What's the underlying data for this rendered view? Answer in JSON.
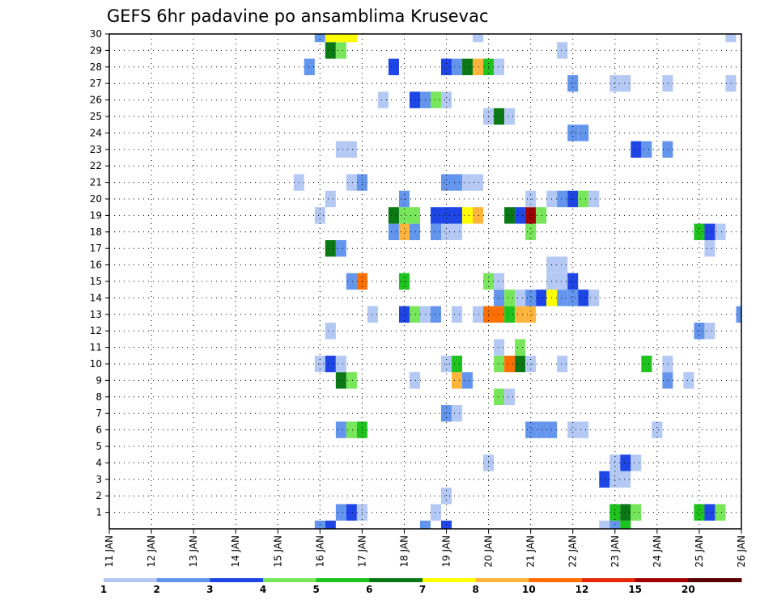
{
  "chart_data": {
    "type": "heatmap",
    "title": "GEFS 6hr padavine po ansamblima Krusevac",
    "x_tick_labels": [
      "11 JAN",
      "12 JAN",
      "13 JAN",
      "14 JAN",
      "15 JAN",
      "16 JAN",
      "17 JAN",
      "18 JAN",
      "19 JAN",
      "20 JAN",
      "21 JAN",
      "22 JAN",
      "23 JAN",
      "24 JAN",
      "25 JAN",
      "26 JAN"
    ],
    "y_tick_labels": [
      "1",
      "2",
      "3",
      "4",
      "5",
      "6",
      "7",
      "8",
      "9",
      "10",
      "11",
      "12",
      "13",
      "14",
      "15",
      "16",
      "17",
      "18",
      "19",
      "20",
      "21",
      "22",
      "23",
      "24",
      "25",
      "26",
      "27",
      "28",
      "29",
      "30"
    ],
    "xlim_days": [
      11,
      26
    ],
    "ylim_members": [
      0,
      30
    ],
    "x_units": "days (JAN), 6-hour bins",
    "y_units": "ensemble member",
    "grid": true,
    "legend": {
      "placement": "bottom",
      "labels": [
        "1",
        "2",
        "3",
        "4",
        "5",
        "6",
        "7",
        "8",
        "10",
        "12",
        "15",
        "20"
      ],
      "colors": [
        "#b4c8f4",
        "#6495ed",
        "#1e46e6",
        "#78e65a",
        "#1ec31e",
        "#0a7814",
        "#ffff00",
        "#ffb43c",
        "#ff6e00",
        "#e6280a",
        "#a00000",
        "#5a0000"
      ]
    },
    "series": [
      {
        "member": 0,
        "cells": [
          {
            "day": 16.0,
            "v": 2
          },
          {
            "day": 16.25,
            "v": 3
          },
          {
            "day": 18.5,
            "v": 2
          },
          {
            "day": 19.0,
            "v": 3
          },
          {
            "day": 22.75,
            "v": 1
          },
          {
            "day": 23.0,
            "v": 2
          },
          {
            "day": 23.25,
            "v": 5
          }
        ]
      },
      {
        "member": 1,
        "cells": [
          {
            "day": 16.5,
            "v": 2
          },
          {
            "day": 16.75,
            "v": 3
          },
          {
            "day": 17.0,
            "v": 1
          },
          {
            "day": 18.75,
            "v": 1
          },
          {
            "day": 23.0,
            "v": 5
          },
          {
            "day": 23.25,
            "v": 6
          },
          {
            "day": 23.5,
            "v": 4
          },
          {
            "day": 25.0,
            "v": 5
          },
          {
            "day": 25.25,
            "v": 3
          },
          {
            "day": 25.5,
            "v": 4
          }
        ]
      },
      {
        "member": 2,
        "cells": [
          {
            "day": 19.0,
            "v": 1
          }
        ]
      },
      {
        "member": 3,
        "cells": [
          {
            "day": 22.75,
            "v": 3
          },
          {
            "day": 23.0,
            "v": 1
          },
          {
            "day": 23.25,
            "v": 1
          }
        ]
      },
      {
        "member": 4,
        "cells": [
          {
            "day": 20.0,
            "v": 1
          },
          {
            "day": 23.0,
            "v": 1
          },
          {
            "day": 23.25,
            "v": 3
          },
          {
            "day": 23.5,
            "v": 1
          }
        ]
      },
      {
        "member": 6,
        "cells": [
          {
            "day": 16.5,
            "v": 2
          },
          {
            "day": 16.75,
            "v": 4
          },
          {
            "day": 17.0,
            "v": 5
          },
          {
            "day": 21.0,
            "v": 2
          },
          {
            "day": 21.25,
            "v": 2
          },
          {
            "day": 21.5,
            "v": 2
          },
          {
            "day": 22.0,
            "v": 1
          },
          {
            "day": 22.25,
            "v": 1
          },
          {
            "day": 24.0,
            "v": 1
          }
        ]
      },
      {
        "member": 7,
        "cells": [
          {
            "day": 19.0,
            "v": 2
          },
          {
            "day": 19.25,
            "v": 1
          }
        ]
      },
      {
        "member": 8,
        "cells": [
          {
            "day": 20.25,
            "v": 4
          },
          {
            "day": 20.5,
            "v": 1
          }
        ]
      },
      {
        "member": 9,
        "cells": [
          {
            "day": 16.5,
            "v": 6
          },
          {
            "day": 16.75,
            "v": 4
          },
          {
            "day": 18.25,
            "v": 1
          },
          {
            "day": 19.25,
            "v": 8
          },
          {
            "day": 19.5,
            "v": 2
          },
          {
            "day": 24.25,
            "v": 2
          },
          {
            "day": 24.75,
            "v": 1
          }
        ]
      },
      {
        "member": 10,
        "cells": [
          {
            "day": 16.0,
            "v": 1
          },
          {
            "day": 16.25,
            "v": 3
          },
          {
            "day": 16.5,
            "v": 1
          },
          {
            "day": 19.0,
            "v": 1
          },
          {
            "day": 19.25,
            "v": 5
          },
          {
            "day": 20.25,
            "v": 4
          },
          {
            "day": 20.5,
            "v": 10
          },
          {
            "day": 20.75,
            "v": 6
          },
          {
            "day": 21.0,
            "v": 1
          },
          {
            "day": 21.75,
            "v": 1
          },
          {
            "day": 23.75,
            "v": 5
          },
          {
            "day": 24.25,
            "v": 1
          }
        ]
      },
      {
        "member": 11,
        "cells": [
          {
            "day": 20.25,
            "v": 1
          },
          {
            "day": 20.75,
            "v": 4
          }
        ]
      },
      {
        "member": 12,
        "cells": [
          {
            "day": 16.25,
            "v": 1
          },
          {
            "day": 25.0,
            "v": 2
          },
          {
            "day": 25.25,
            "v": 1
          }
        ]
      },
      {
        "member": 13,
        "cells": [
          {
            "day": 17.25,
            "v": 1
          },
          {
            "day": 18.0,
            "v": 3
          },
          {
            "day": 18.25,
            "v": 4
          },
          {
            "day": 18.5,
            "v": 1
          },
          {
            "day": 18.75,
            "v": 2
          },
          {
            "day": 19.25,
            "v": 1
          },
          {
            "day": 19.75,
            "v": 1
          },
          {
            "day": 20.0,
            "v": 10
          },
          {
            "day": 20.25,
            "v": 10
          },
          {
            "day": 20.5,
            "v": 5
          },
          {
            "day": 20.75,
            "v": 8
          },
          {
            "day": 21.0,
            "v": 8
          },
          {
            "day": 26.0,
            "v": 2
          }
        ]
      },
      {
        "member": 14,
        "cells": [
          {
            "day": 20.25,
            "v": 2
          },
          {
            "day": 20.5,
            "v": 4
          },
          {
            "day": 20.75,
            "v": 1
          },
          {
            "day": 21.0,
            "v": 2
          },
          {
            "day": 21.25,
            "v": 3
          },
          {
            "day": 21.5,
            "v": 7
          },
          {
            "day": 21.75,
            "v": 2
          },
          {
            "day": 22.0,
            "v": 2
          },
          {
            "day": 22.25,
            "v": 3
          },
          {
            "day": 22.5,
            "v": 1
          }
        ]
      },
      {
        "member": 15,
        "cells": [
          {
            "day": 16.75,
            "v": 2
          },
          {
            "day": 17.0,
            "v": 10
          },
          {
            "day": 18.0,
            "v": 5
          },
          {
            "day": 20.0,
            "v": 4
          },
          {
            "day": 20.25,
            "v": 1
          },
          {
            "day": 21.5,
            "v": 1
          },
          {
            "day": 21.75,
            "v": 1
          },
          {
            "day": 22.0,
            "v": 3
          }
        ]
      },
      {
        "member": 16,
        "cells": [
          {
            "day": 21.5,
            "v": 1
          },
          {
            "day": 21.75,
            "v": 1
          }
        ]
      },
      {
        "member": 17,
        "cells": [
          {
            "day": 16.25,
            "v": 6
          },
          {
            "day": 16.5,
            "v": 2
          },
          {
            "day": 25.25,
            "v": 1
          }
        ]
      },
      {
        "member": 18,
        "cells": [
          {
            "day": 17.75,
            "v": 2
          },
          {
            "day": 18.0,
            "v": 8
          },
          {
            "day": 18.25,
            "v": 2
          },
          {
            "day": 18.75,
            "v": 2
          },
          {
            "day": 19.0,
            "v": 1
          },
          {
            "day": 19.25,
            "v": 1
          },
          {
            "day": 21.0,
            "v": 4
          },
          {
            "day": 25.0,
            "v": 5
          },
          {
            "day": 25.25,
            "v": 3
          },
          {
            "day": 25.5,
            "v": 1
          }
        ]
      },
      {
        "member": 19,
        "cells": [
          {
            "day": 16.0,
            "v": 1
          },
          {
            "day": 17.75,
            "v": 6
          },
          {
            "day": 18.0,
            "v": 4
          },
          {
            "day": 18.25,
            "v": 4
          },
          {
            "day": 18.75,
            "v": 3
          },
          {
            "day": 19.0,
            "v": 3
          },
          {
            "day": 19.25,
            "v": 3
          },
          {
            "day": 19.5,
            "v": 7
          },
          {
            "day": 19.75,
            "v": 8
          },
          {
            "day": 20.5,
            "v": 6
          },
          {
            "day": 20.75,
            "v": 3
          },
          {
            "day": 21.0,
            "v": 15
          },
          {
            "day": 21.25,
            "v": 4
          }
        ]
      },
      {
        "member": 20,
        "cells": [
          {
            "day": 16.25,
            "v": 1
          },
          {
            "day": 18.0,
            "v": 2
          },
          {
            "day": 21.0,
            "v": 1
          },
          {
            "day": 21.5,
            "v": 1
          },
          {
            "day": 21.75,
            "v": 2
          },
          {
            "day": 22.0,
            "v": 3
          },
          {
            "day": 22.25,
            "v": 4
          },
          {
            "day": 22.5,
            "v": 1
          }
        ]
      },
      {
        "member": 21,
        "cells": [
          {
            "day": 15.5,
            "v": 1
          },
          {
            "day": 16.75,
            "v": 1
          },
          {
            "day": 17.0,
            "v": 2
          },
          {
            "day": 19.0,
            "v": 2
          },
          {
            "day": 19.25,
            "v": 2
          },
          {
            "day": 19.5,
            "v": 1
          },
          {
            "day": 19.75,
            "v": 1
          }
        ]
      },
      {
        "member": 23,
        "cells": [
          {
            "day": 16.5,
            "v": 1
          },
          {
            "day": 16.75,
            "v": 1
          },
          {
            "day": 23.5,
            "v": 3
          },
          {
            "day": 23.75,
            "v": 2
          },
          {
            "day": 24.25,
            "v": 2
          }
        ]
      },
      {
        "member": 24,
        "cells": [
          {
            "day": 22.0,
            "v": 2
          },
          {
            "day": 22.25,
            "v": 2
          }
        ]
      },
      {
        "member": 25,
        "cells": [
          {
            "day": 20.0,
            "v": 1
          },
          {
            "day": 20.25,
            "v": 6
          },
          {
            "day": 20.5,
            "v": 1
          }
        ]
      },
      {
        "member": 26,
        "cells": [
          {
            "day": 17.5,
            "v": 1
          },
          {
            "day": 18.25,
            "v": 3
          },
          {
            "day": 18.5,
            "v": 2
          },
          {
            "day": 18.75,
            "v": 4
          },
          {
            "day": 19.0,
            "v": 1
          }
        ]
      },
      {
        "member": 27,
        "cells": [
          {
            "day": 22.0,
            "v": 2
          },
          {
            "day": 23.0,
            "v": 1
          },
          {
            "day": 23.25,
            "v": 1
          },
          {
            "day": 24.25,
            "v": 1
          },
          {
            "day": 25.75,
            "v": 1
          }
        ]
      },
      {
        "member": 28,
        "cells": [
          {
            "day": 15.75,
            "v": 2
          },
          {
            "day": 17.75,
            "v": 3
          },
          {
            "day": 19.0,
            "v": 3
          },
          {
            "day": 19.25,
            "v": 2
          },
          {
            "day": 19.5,
            "v": 6
          },
          {
            "day": 19.75,
            "v": 8
          },
          {
            "day": 20.0,
            "v": 5
          },
          {
            "day": 20.25,
            "v": 1
          }
        ]
      },
      {
        "member": 29,
        "cells": [
          {
            "day": 16.25,
            "v": 6
          },
          {
            "day": 16.5,
            "v": 4
          },
          {
            "day": 21.75,
            "v": 1
          }
        ]
      },
      {
        "member": 30,
        "cells": [
          {
            "day": 16.0,
            "v": 2
          },
          {
            "day": 16.25,
            "v": 7
          },
          {
            "day": 16.5,
            "v": 7
          },
          {
            "day": 16.75,
            "v": 7
          },
          {
            "day": 19.75,
            "v": 1
          },
          {
            "day": 25.75,
            "v": 1
          }
        ]
      }
    ]
  }
}
